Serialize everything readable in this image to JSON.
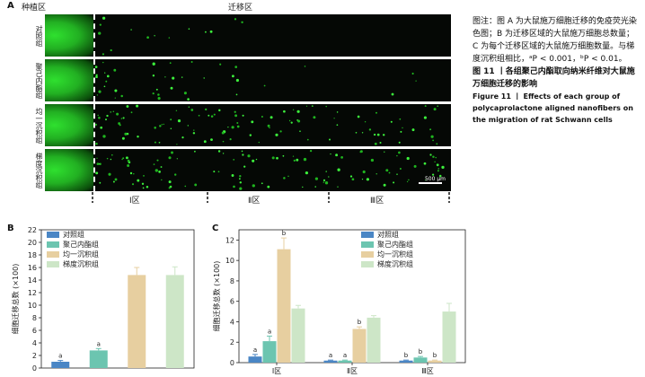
{
  "figure_a": {
    "zone_seed": "种植区",
    "zone_migration": "迁移区",
    "rows": [
      "对照组",
      "聚己内酯组",
      "均一沉积组",
      "梯度沉积组"
    ],
    "regions": [
      "Ⅰ区",
      "Ⅱ区",
      "Ⅲ区"
    ],
    "scale_bar": "500 μm"
  },
  "caption": {
    "note": "图注：图 A 为大鼠施万细胞迁移的免疫荧光染色图；B 为迁移区域的大鼠施万细胞总数量；C 为每个迁移区域的大鼠施万细胞数量。与梯度沉积组相比，ᵃP < 0.001，ᵇP < 0.01。",
    "title_cn": "图 11 丨各组聚己内酯取向纳米纤维对大鼠施万细胞迁移的影响",
    "title_en": "Figure 11 丨 Effects of each group of polycaprolactone aligned nanofibers on the migration of rat Schwann cells"
  },
  "colors": {
    "control": "#4a86c5",
    "pcl": "#6cc5b0",
    "uniform": "#e7cfa0",
    "gradient": "#cde6c7"
  },
  "chart_data": [
    {
      "panel": "B",
      "type": "bar",
      "ylabel": "细胞迁移总数 (×100)",
      "ylim": [
        0,
        22
      ],
      "yticks": [
        0,
        2,
        4,
        6,
        8,
        10,
        12,
        14,
        16,
        18,
        20,
        22
      ],
      "legend_position": "top-left",
      "series": [
        {
          "name": "对照组",
          "value": 1.0,
          "error": 0.2,
          "sig": "a"
        },
        {
          "name": "聚己内酯组",
          "value": 2.8,
          "error": 0.3,
          "sig": "a"
        },
        {
          "name": "均一沉积组",
          "value": 14.8,
          "error": 1.2,
          "sig": ""
        },
        {
          "name": "梯度沉积组",
          "value": 14.8,
          "error": 1.3,
          "sig": ""
        }
      ]
    },
    {
      "panel": "C",
      "type": "bar",
      "ylabel": "细胞迁移总数 (×100)",
      "ylim": [
        0,
        13
      ],
      "yticks": [
        0,
        2,
        4,
        6,
        8,
        10,
        12
      ],
      "legend_position": "top-center",
      "categories": [
        "Ⅰ区",
        "Ⅱ区",
        "Ⅲ区"
      ],
      "series": [
        {
          "name": "对照组",
          "values": [
            0.6,
            0.2,
            0.2
          ],
          "errors": [
            0.2,
            0.05,
            0.05
          ],
          "sig": [
            "a",
            "a",
            "b"
          ]
        },
        {
          "name": "聚己内酯组",
          "values": [
            2.1,
            0.2,
            0.5
          ],
          "errors": [
            0.5,
            0.05,
            0.1
          ],
          "sig": [
            "a",
            "a",
            "b"
          ]
        },
        {
          "name": "均一沉积组",
          "values": [
            11.1,
            3.3,
            0.2
          ],
          "errors": [
            1.1,
            0.2,
            0.05
          ],
          "sig": [
            "b",
            "b",
            "b"
          ]
        },
        {
          "name": "梯度沉积组",
          "values": [
            5.3,
            4.4,
            5.0
          ],
          "errors": [
            0.3,
            0.2,
            0.8
          ],
          "sig": [
            "",
            "",
            ""
          ]
        }
      ]
    }
  ]
}
